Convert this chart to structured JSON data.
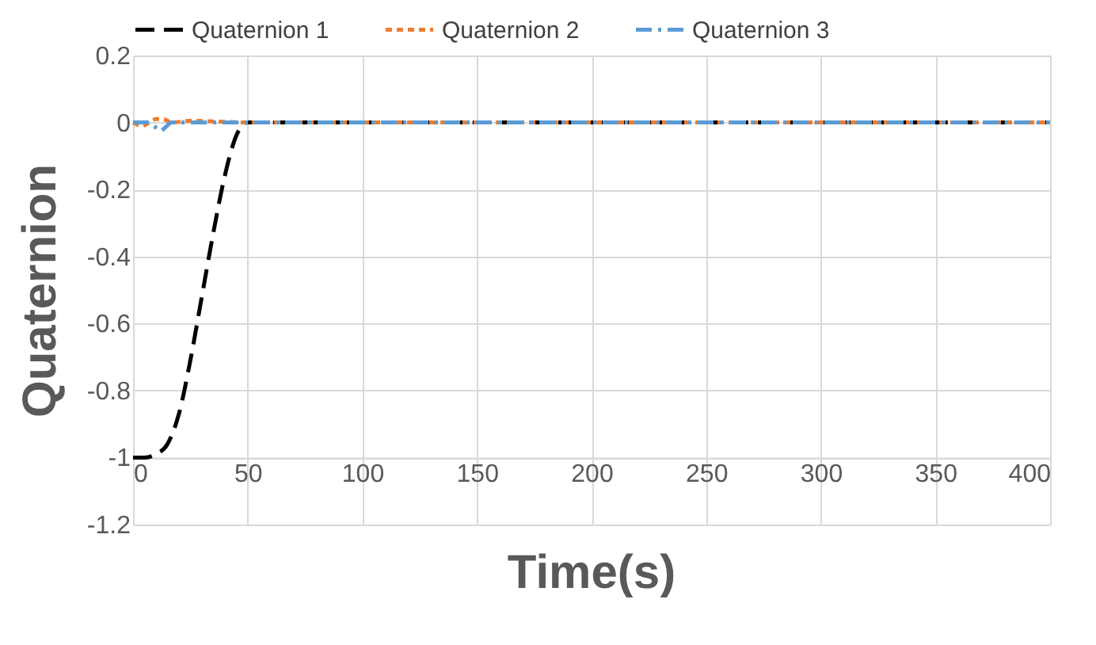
{
  "chart_data": {
    "type": "line",
    "xlabel": "Time(s)",
    "ylabel": "Quaternion",
    "xlim": [
      0,
      400
    ],
    "xticks": [
      0,
      50,
      100,
      150,
      200,
      250,
      300,
      350,
      400
    ],
    "ylim": [
      -1.2,
      0.2
    ],
    "yticks": [
      -1.2,
      -1,
      -0.8,
      -0.6,
      -0.4,
      -0.2,
      0,
      0.2
    ],
    "grid": true,
    "legend": "top",
    "series": [
      {
        "name": "Quaternion 1",
        "color": "#000000",
        "line_style": "dashed",
        "x": [
          0,
          5,
          10,
          15,
          20,
          25,
          30,
          35,
          40,
          45,
          50,
          400
        ],
        "values": [
          -1,
          -1,
          -0.99,
          -0.96,
          -0.87,
          -0.71,
          -0.52,
          -0.33,
          -0.16,
          -0.04,
          0,
          0
        ]
      },
      {
        "name": "Quaternion 2",
        "color": "#ed7d31",
        "line_style": "dotted",
        "x": [
          0,
          4,
          7,
          10,
          13,
          17,
          25,
          50,
          400
        ],
        "values": [
          0,
          -0.01,
          0,
          0.01,
          0.01,
          0,
          0.005,
          0,
          0
        ]
      },
      {
        "name": "Quaternion 3",
        "color": "#5b9bd5",
        "line_style": "dashdot",
        "x": [
          0,
          6,
          9,
          12,
          14,
          17,
          22,
          400
        ],
        "values": [
          0,
          0,
          -0.01,
          -0.025,
          -0.015,
          0,
          0,
          0
        ]
      }
    ]
  }
}
